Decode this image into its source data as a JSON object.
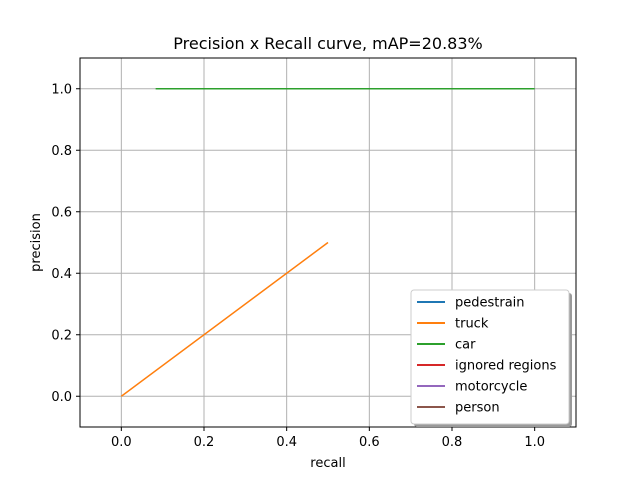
{
  "chart_data": {
    "type": "line",
    "title": "Precision x Recall curve, mAP=20.83%",
    "xlabel": "recall",
    "ylabel": "precision",
    "xlim": [
      -0.1,
      1.1
    ],
    "ylim": [
      -0.1,
      1.1
    ],
    "xticks": [
      "0.0",
      "0.2",
      "0.4",
      "0.6",
      "0.8",
      "1.0"
    ],
    "yticks": [
      "0.0",
      "0.2",
      "0.4",
      "0.6",
      "0.8",
      "1.0"
    ],
    "grid": true,
    "legend_position": "bottom-right",
    "series": [
      {
        "name": "pedestrain",
        "color": "#1f77b4",
        "x": [],
        "y": []
      },
      {
        "name": "truck",
        "color": "#ff7f0e",
        "x": [
          0.0,
          0.5
        ],
        "y": [
          0.0,
          0.5
        ]
      },
      {
        "name": "car",
        "color": "#2ca02c",
        "x": [
          0.083,
          1.0
        ],
        "y": [
          1.0,
          1.0
        ]
      },
      {
        "name": "ignored regions",
        "color": "#d62728",
        "x": [],
        "y": []
      },
      {
        "name": "motorcycle",
        "color": "#9467bd",
        "x": [],
        "y": []
      },
      {
        "name": "person",
        "color": "#8c564b",
        "x": [],
        "y": []
      }
    ]
  }
}
